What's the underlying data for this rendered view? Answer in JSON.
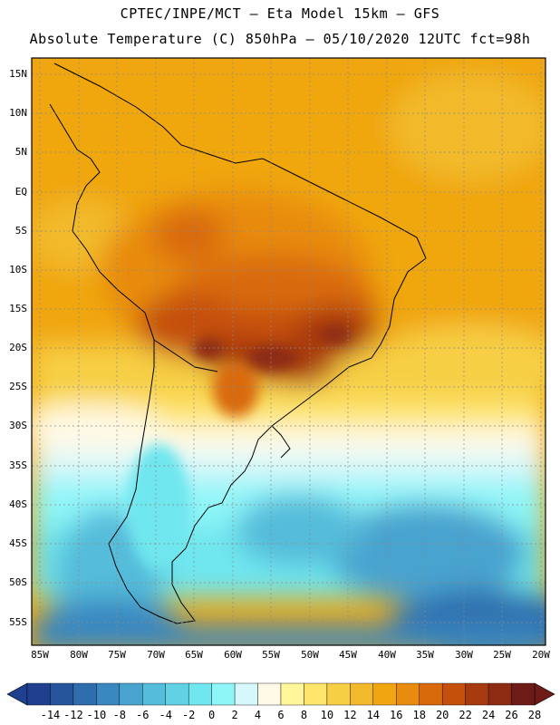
{
  "header": {
    "line1": "CPTEC/INPE/MCT –  Eta Model 15km – GFS",
    "line2": "Absolute Temperature (C) 850hPa – 05/10/2020 12UTC fct=98h"
  },
  "map": {
    "latitude_labels": [
      "15N",
      "10N",
      "5N",
      "EQ",
      "5S",
      "10S",
      "15S",
      "20S",
      "25S",
      "30S",
      "35S",
      "40S",
      "45S",
      "50S",
      "55S"
    ],
    "longitude_labels": [
      "85W",
      "80W",
      "75W",
      "70W",
      "65W",
      "60W",
      "55W",
      "50W",
      "45W",
      "40W",
      "35W",
      "30W",
      "25W",
      "20W"
    ]
  },
  "colorbar": {
    "labels": [
      "-14",
      "-12",
      "-10",
      "-8",
      "-6",
      "-4",
      "-2",
      "0",
      "2",
      "4",
      "6",
      "8",
      "10",
      "12",
      "14",
      "16",
      "18",
      "20",
      "22",
      "24",
      "26",
      "28"
    ],
    "colors": [
      "#1f3f8f",
      "#27559c",
      "#2e6eae",
      "#3a88c0",
      "#48a3cf",
      "#55bcda",
      "#60d2e4",
      "#70e6ee",
      "#8ff6f8",
      "#d6f7fb",
      "#fff9e6",
      "#fff79a",
      "#fde46a",
      "#f7cf45",
      "#f2ba2b",
      "#f0a610",
      "#e88b0e",
      "#d96a0c",
      "#c4500c",
      "#a83a10",
      "#8c2a12",
      "#6e1a16"
    ]
  }
}
